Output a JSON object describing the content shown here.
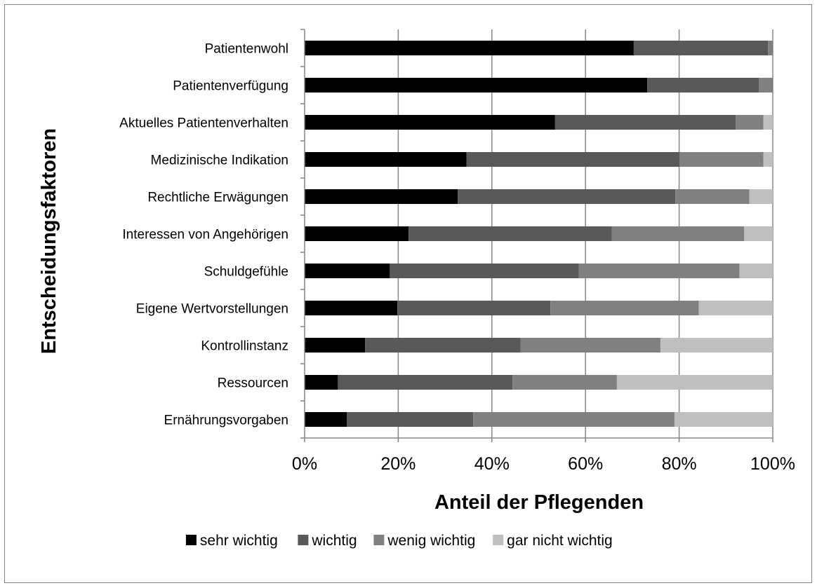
{
  "chart_data": {
    "type": "bar",
    "orientation": "horizontal",
    "stacked": "percent",
    "title": "",
    "xlabel": "Anteil der Pflegenden",
    "ylabel": "Entscheidungsfaktoren",
    "xlim": [
      0,
      100
    ],
    "x_ticks": [
      "0%",
      "20%",
      "40%",
      "60%",
      "80%",
      "100%"
    ],
    "grid": "vertical",
    "legend_position": "bottom",
    "categories": [
      "Patientenwohl",
      "Patientenverfügung",
      "Aktuelles Patientenverhalten",
      "Medizinische Indikation",
      "Rechtliche Erwägungen",
      "Interessen von Angehörigen",
      "Schuldgefühle",
      "Eigene Wertvorstellungen",
      "Kontrollinstanz",
      "Ressourcen",
      "Ernährungsvorgaben"
    ],
    "series": [
      {
        "name": "sehr wichtig",
        "color": "#000000",
        "values": [
          70.3,
          73.2,
          53.5,
          34.6,
          32.7,
          22.2,
          18.2,
          19.8,
          12.9,
          7.1,
          9.0
        ]
      },
      {
        "name": "wichtig",
        "color": "#595959",
        "values": [
          28.7,
          23.8,
          38.6,
          45.5,
          46.5,
          43.4,
          40.4,
          32.7,
          33.2,
          37.3,
          27.0
        ]
      },
      {
        "name": "wenig wichtig",
        "color": "#808080",
        "values": [
          1.0,
          3.0,
          5.9,
          17.9,
          15.8,
          28.3,
          34.3,
          31.7,
          29.9,
          22.3,
          43.0
        ]
      },
      {
        "name": "gar nicht wichtig",
        "color": "#bfbfbf",
        "values": [
          0.0,
          0.0,
          2.0,
          2.0,
          5.0,
          6.1,
          7.1,
          15.8,
          24.0,
          33.3,
          21.0
        ]
      }
    ]
  }
}
